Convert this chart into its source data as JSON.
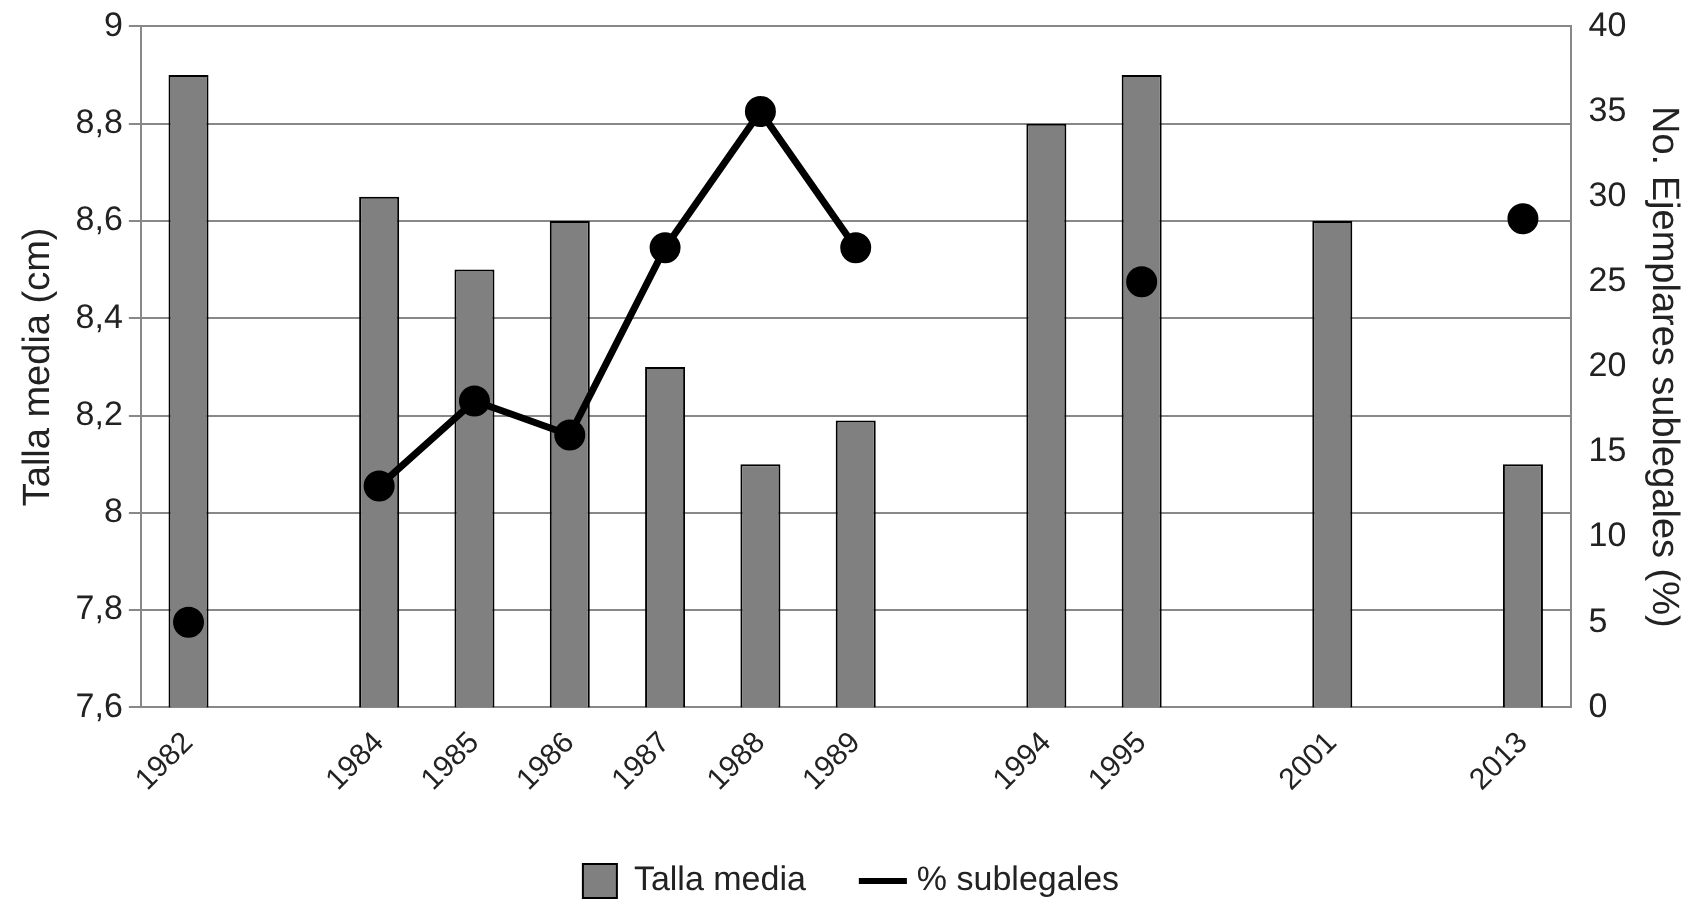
{
  "chart_data": {
    "type": "bar",
    "ylabel": "Talla media (cm)",
    "y2label": "No. Ejemplares sublegales (%)",
    "categories": [
      "1982",
      null,
      "1984",
      "1985",
      "1986",
      "1987",
      "1988",
      "1989",
      null,
      "1994",
      "1995",
      null,
      "2001",
      null,
      "2013"
    ],
    "series": [
      {
        "name": "Talla media",
        "color": "#808080",
        "values": [
          8.9,
          null,
          8.65,
          8.5,
          8.6,
          8.3,
          8.1,
          8.19,
          null,
          8.8,
          8.9,
          null,
          8.6,
          null,
          8.1
        ]
      },
      {
        "name": "% sublegales",
        "type": "line",
        "axis": "y2",
        "color": "#000000",
        "marker": "circle",
        "values": [
          5,
          null,
          13,
          18,
          16,
          27,
          35,
          27,
          null,
          null,
          25,
          null,
          null,
          null,
          28.7
        ]
      }
    ],
    "ylim": [
      7.6,
      9
    ],
    "yticks": [
      {
        "value": 7.6,
        "label": "7,6"
      },
      {
        "value": 7.8,
        "label": "7,8"
      },
      8,
      {
        "value": 8.2,
        "label": "8,2"
      },
      {
        "value": 8.4,
        "label": "8,4"
      },
      {
        "value": 8.6,
        "label": "8,6"
      },
      {
        "value": 8.8,
        "label": "8,8"
      },
      9
    ],
    "y2lim": [
      0,
      40
    ],
    "y2ticks": [
      0,
      5,
      10,
      15,
      20,
      25,
      30,
      35,
      40
    ],
    "grid": "y",
    "legend": "bottom"
  }
}
